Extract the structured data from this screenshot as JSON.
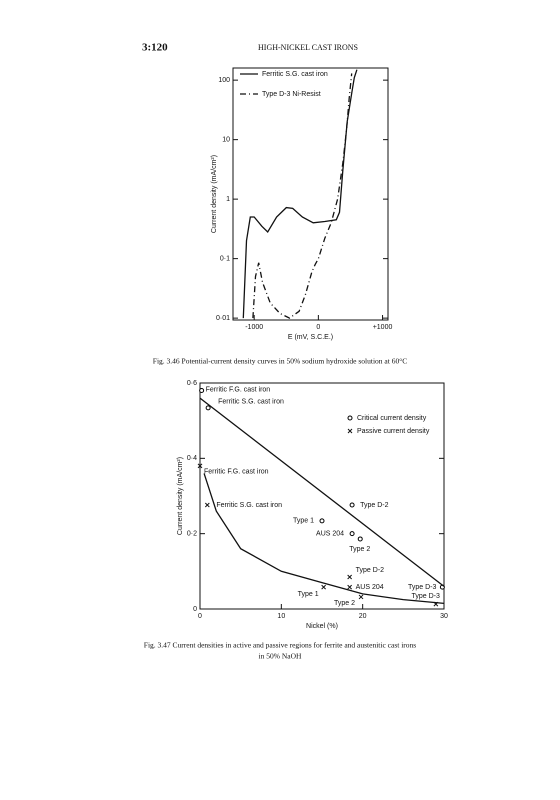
{
  "header": {
    "page": "3:120",
    "title": "HIGH-NICKEL CAST IRONS"
  },
  "chart_data": [
    {
      "type": "line",
      "caption": [
        "Fig. 3.46  Potential-current density curves in 50% sodium hydroxide solution at 60°C"
      ],
      "xlabel": "E (mV, S.C.E.)",
      "ylabel": "Current density (mA/cm²)",
      "xlim": [
        -1330,
        1085
      ],
      "ylim": [
        0.0093,
        160
      ],
      "yscale": "log",
      "xticks": [
        -1000,
        0,
        {
          "value": 1000,
          "label": "+1000"
        }
      ],
      "yticks": [
        {
          "value": 0.01,
          "label": "0·01"
        },
        {
          "value": 0.1,
          "label": "0·1"
        },
        1,
        10,
        100
      ],
      "legend": "top-left",
      "series": [
        {
          "name": "Ferritic S.G. cast iron",
          "color": "#000000",
          "dash": "solid",
          "x": [
            -1170,
            -1120,
            -1060,
            -1000,
            -880,
            -790,
            -650,
            -500,
            -400,
            -250,
            -80,
            100,
            280,
            330,
            380,
            450,
            520,
            560,
            600
          ],
          "values": [
            0.01,
            0.2,
            0.5,
            0.5,
            0.35,
            0.28,
            0.5,
            0.72,
            0.7,
            0.5,
            0.4,
            0.42,
            0.45,
            0.6,
            3,
            20,
            60,
            110,
            150
          ]
        },
        {
          "name": "Type D-3 Ni-Resist",
          "color": "#000000",
          "dash": "dashed",
          "x": [
            -1020,
            -980,
            -930,
            -870,
            -750,
            -600,
            -450,
            -300,
            -200,
            -100,
            -50,
            0,
            100,
            200,
            300,
            380,
            440,
            480,
            520
          ],
          "values": [
            0.01,
            0.05,
            0.085,
            0.04,
            0.018,
            0.012,
            0.01,
            0.013,
            0.025,
            0.06,
            0.08,
            0.1,
            0.22,
            0.4,
            1,
            4,
            15,
            50,
            130
          ]
        }
      ]
    },
    {
      "type": "scatter",
      "caption": [
        "Fig. 3.47  Current densities in active and passive regions for ferrite and austenitic cast irons",
        "in 50% NaOH"
      ],
      "xlabel": "Nickel (%)",
      "ylabel": "Current density (mA/cm²)",
      "xlim": [
        0,
        30
      ],
      "ylim": [
        0,
        0.6
      ],
      "xticks": [
        0,
        10,
        20,
        30
      ],
      "yticks": [
        0,
        {
          "value": 0.2,
          "label": "0·2"
        },
        {
          "value": 0.4,
          "label": "0·4"
        },
        {
          "value": 0.6,
          "label": "0·6"
        }
      ],
      "legend": "top-right",
      "series": [
        {
          "name": "Critical current density",
          "marker": "circle",
          "color": "#000000",
          "x": [
            0.2,
            1,
            18.7,
            15,
            18.7,
            19.7,
            29.8
          ],
          "values": [
            0.58,
            0.534,
            0.276,
            0.234,
            0.2,
            0.186,
            0.058
          ],
          "labels": [
            "Ferritic F.G. cast iron",
            "Ferritic S.G. cast iron",
            "Type D-2",
            "Type 1",
            "AUS 204",
            "Type 2",
            "Type D-3"
          ]
        },
        {
          "name": "Passive current density",
          "marker": "cross",
          "color": "#000000",
          "x": [
            0,
            0.9,
            18.4,
            18.4,
            15.2,
            19.8,
            29
          ],
          "values": [
            0.38,
            0.276,
            0.085,
            0.058,
            0.058,
            0.032,
            0.013
          ],
          "labels": [
            "Ferritic F.G. cast iron",
            "Ferritic S.G. cast iron",
            "Type D-2",
            "AUS 204",
            "Type 1",
            "Type 2",
            "Type D-3"
          ]
        },
        {
          "marker": "line",
          "color": "#000000",
          "x": [
            0,
            30
          ],
          "values": [
            0.56,
            0.06
          ]
        },
        {
          "marker": "line",
          "color": "#000000",
          "x": [
            0.5,
            2,
            5,
            10,
            15,
            20,
            25,
            30
          ],
          "values": [
            0.36,
            0.26,
            0.16,
            0.1,
            0.07,
            0.04,
            0.025,
            0.015
          ]
        }
      ]
    }
  ]
}
